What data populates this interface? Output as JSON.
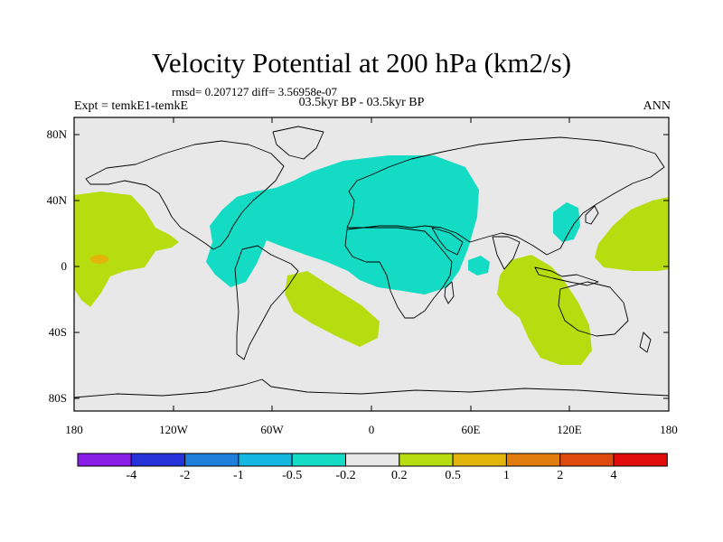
{
  "title": "Velocity Potential at 200 hPa (km2/s)",
  "stats": "rmsd= 0.207127 diff= 3.56958e-07",
  "experiment": "Expt = temkE1-temkE",
  "period": "03.5kyr BP - 03.5kyr BP",
  "season": "ANN",
  "axes": {
    "lat_labels": [
      "80N",
      "40N",
      "0",
      "40S",
      "80S"
    ],
    "lon_labels": [
      "180",
      "120W",
      "60W",
      "0",
      "60E",
      "120E",
      "180"
    ]
  },
  "colorbar": {
    "colors": [
      "#8a1ee6",
      "#2533d8",
      "#1e7fdb",
      "#15b6e0",
      "#14dcc4",
      "#e8e8e8",
      "#b7dc0f",
      "#e3b40c",
      "#e07c0b",
      "#de4a0d",
      "#e00c0c"
    ],
    "tick_labels": [
      "-4",
      "-2",
      "-1",
      "-0.5",
      "-0.2",
      "0.2",
      "0.5",
      "1",
      "2",
      "4"
    ]
  },
  "colors": {
    "background_field": "#e8e8e8",
    "negative_anomaly": "#14dcc4",
    "positive_anomaly": "#b7dc0f",
    "strong_positive": "#e3b40c"
  }
}
